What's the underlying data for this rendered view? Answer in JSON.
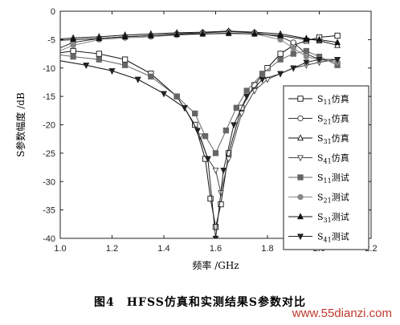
{
  "chart_data": {
    "type": "line",
    "xlabel": "频率 /GHz",
    "ylabel": "S参数幅度 /dB",
    "xlim": [
      1.0,
      2.2
    ],
    "ylim": [
      -40,
      0
    ],
    "xticks": [
      "1.0",
      "1.2",
      "1.4",
      "1.6",
      "1.8",
      "2.0",
      "2.2"
    ],
    "yticks": [
      "0",
      "-5",
      "-10",
      "-15",
      "-20",
      "-25",
      "-30",
      "-35",
      "-40"
    ],
    "legend_position": "right",
    "series": [
      {
        "name": "S11仿真",
        "sub": "11",
        "suffix": "仿真",
        "marker": "square-open",
        "x": [
          0.97,
          1.05,
          1.15,
          1.25,
          1.35,
          1.45,
          1.52,
          1.56,
          1.58,
          1.6,
          1.62,
          1.65,
          1.7,
          1.75,
          1.8,
          1.85,
          1.9,
          1.95,
          2.0,
          2.07
        ],
        "y": [
          -7.5,
          -7,
          -7.5,
          -8.5,
          -11,
          -15,
          -20,
          -26,
          -33,
          -38,
          -34,
          -25,
          -17,
          -13,
          -10,
          -7.5,
          -6,
          -5.2,
          -4.6,
          -4.3
        ]
      },
      {
        "name": "S21仿真",
        "sub": "21",
        "suffix": "仿真",
        "marker": "circle-open",
        "x": [
          0.97,
          1.05,
          1.15,
          1.25,
          1.35,
          1.45,
          1.55,
          1.65,
          1.75,
          1.85,
          1.9,
          1.95,
          2.0,
          2.07
        ],
        "y": [
          -7,
          -5.5,
          -4.8,
          -4.5,
          -4.3,
          -4,
          -3.8,
          -3.6,
          -3.8,
          -4.5,
          -5.5,
          -7.5,
          -8.5,
          -9
        ]
      },
      {
        "name": "S31仿真",
        "sub": "31",
        "suffix": "仿真",
        "marker": "triangle-up-open",
        "x": [
          0.97,
          1.05,
          1.15,
          1.25,
          1.35,
          1.45,
          1.55,
          1.65,
          1.75,
          1.85,
          1.95,
          2.0,
          2.07
        ],
        "y": [
          -5,
          -4.7,
          -4.5,
          -4.2,
          -4,
          -3.8,
          -3.7,
          -3.5,
          -3.7,
          -4,
          -4.8,
          -5.2,
          -6
        ]
      },
      {
        "name": "S41仿真",
        "sub": "41",
        "suffix": "仿真",
        "marker": "triangle-down-open",
        "x": [
          0.97,
          1.1,
          1.2,
          1.3,
          1.4,
          1.48,
          1.54,
          1.57,
          1.6,
          1.62,
          1.65,
          1.7,
          1.75,
          1.8,
          1.85,
          1.9,
          1.95,
          2.0,
          2.07
        ],
        "y": [
          -8.5,
          -9.5,
          -10.5,
          -12,
          -14.5,
          -17,
          -22,
          -26,
          -28,
          -32,
          -26,
          -18,
          -14,
          -12,
          -11,
          -10,
          -9.5,
          -9,
          -8.5
        ]
      },
      {
        "name": "S11测试",
        "sub": "11",
        "suffix": "测试",
        "marker": "square-filled",
        "x": [
          0.97,
          1.05,
          1.15,
          1.25,
          1.35,
          1.45,
          1.52,
          1.56,
          1.6,
          1.64,
          1.68,
          1.72,
          1.78,
          1.85,
          1.9,
          1.95,
          2.0,
          2.07
        ],
        "y": [
          -7.5,
          -8,
          -8.5,
          -9.5,
          -11.5,
          -15,
          -18,
          -22,
          -25,
          -21,
          -17,
          -14,
          -11,
          -8.5,
          -7.5,
          -7,
          -8,
          -9.5
        ]
      },
      {
        "name": "S21测试",
        "sub": "21",
        "suffix": "测试",
        "marker": "circle-filled",
        "x": [
          0.97,
          1.05,
          1.15,
          1.25,
          1.35,
          1.45,
          1.55,
          1.65,
          1.75,
          1.85,
          1.9,
          1.95,
          2.0,
          2.07
        ],
        "y": [
          -7.5,
          -6,
          -5,
          -4.7,
          -4.5,
          -4.2,
          -4,
          -3.9,
          -4,
          -5,
          -6.5,
          -8,
          -8.5,
          -9
        ]
      },
      {
        "name": "S31测试",
        "sub": "31",
        "suffix": "测试",
        "marker": "triangle-up-filled",
        "x": [
          0.97,
          1.05,
          1.15,
          1.25,
          1.35,
          1.45,
          1.55,
          1.65,
          1.75,
          1.85,
          1.95,
          2.0,
          2.07
        ],
        "y": [
          -5.2,
          -5,
          -4.8,
          -4.5,
          -4.3,
          -4.1,
          -4,
          -3.9,
          -4,
          -4.3,
          -5,
          -5,
          -5.5
        ]
      },
      {
        "name": "S41测试",
        "sub": "41",
        "suffix": "测试",
        "marker": "triangle-down-filled",
        "x": [
          0.97,
          1.1,
          1.2,
          1.3,
          1.4,
          1.48,
          1.53,
          1.57,
          1.6,
          1.63,
          1.67,
          1.72,
          1.78,
          1.85,
          1.9,
          1.95,
          2.0,
          2.07
        ],
        "y": [
          -8.5,
          -9.5,
          -10.5,
          -12,
          -14.5,
          -17,
          -21,
          -26,
          -40,
          -28,
          -20,
          -15,
          -12,
          -11,
          -10,
          -9,
          -8.5,
          -8.5
        ]
      }
    ]
  },
  "caption": "图4　HFSS仿真和实测结果S参数对比",
  "watermark": "www.55dianzi.com"
}
